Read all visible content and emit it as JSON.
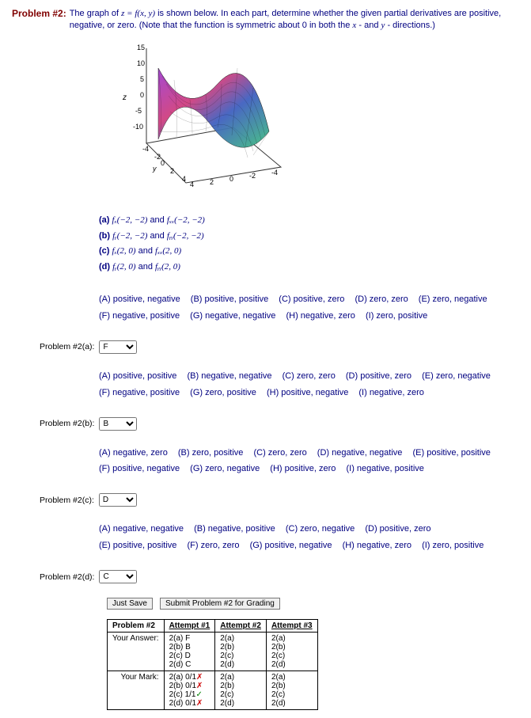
{
  "problem": {
    "title": "Problem #2:",
    "desc_part1": "The graph of ",
    "desc_formula": "z = f(x, y)",
    "desc_part2": " is shown below. In each part, determine whether the given partial derivatives are positive, negative, or zero. (Note that the function is symmetric about 0 in both the ",
    "desc_xvar": "x",
    "desc_and": "- and ",
    "desc_yvar": "y",
    "desc_end": "- directions.)"
  },
  "graph": {
    "z_ticks": [
      "15",
      "10",
      "5",
      "0",
      "-5",
      "-10"
    ],
    "y_ticks": [
      "-4",
      "-2",
      "0",
      "2",
      "4"
    ],
    "x_ticks": [
      "4",
      "2",
      "0",
      "-2",
      "-4"
    ],
    "z_label": "z",
    "y_label": "y"
  },
  "subparts": {
    "a": {
      "label": "(a)",
      "f1": "fₓ(−2, −2)",
      "and": " and ",
      "f2": "fₓₓ(−2, −2)"
    },
    "b": {
      "label": "(b)",
      "f1": "fᵧ(−2, −2)",
      "and": " and ",
      "f2": "fᵧᵧ(−2, −2)"
    },
    "c": {
      "label": "(c)",
      "f1": "fₓ(2, 0)",
      "and": " and ",
      "f2": "fₓₓ(2, 0)"
    },
    "d": {
      "label": "(d)",
      "f1": "fᵧ(2, 0)",
      "and": " and ",
      "f2": "fᵧᵧ(2, 0)"
    }
  },
  "options_a": {
    "A": "(A) positive, negative",
    "B": "(B) positive, positive",
    "C": "(C) positive, zero",
    "D": "(D) zero, zero",
    "E": "(E) zero, negative",
    "F": "(F) negative, positive",
    "G": "(G) negative, negative",
    "H": "(H) negative, zero",
    "I": "(I) zero, positive"
  },
  "options_b": {
    "A": "(A) positive, positive",
    "B": "(B) negative, negative",
    "C": "(C) zero, zero",
    "D": "(D) positive, zero",
    "E": "(E) zero, negative",
    "F": "(F) negative, positive",
    "G": "(G) zero, positive",
    "H": "(H) positive, negative",
    "I": "(I) negative, zero"
  },
  "options_c": {
    "A": "(A) negative, zero",
    "B": "(B) zero, positive",
    "C": "(C) zero, zero",
    "D": "(D) negative, negative",
    "E": "(E) positive, positive",
    "F": "(F) positive, negative",
    "G": "(G) zero, negative",
    "H": "(H) positive, zero",
    "I": "(I) negative, positive"
  },
  "options_d": {
    "A": "(A) negative, negative",
    "B": "(B) negative, positive",
    "C": "(C) zero, negative",
    "D": "(D) positive, zero",
    "E": "(E) positive, positive",
    "F": "(F) zero, zero",
    "G": "(G) positive, negative",
    "H": "(H) negative, zero",
    "I": "(I) zero, positive"
  },
  "labels": {
    "p2a": "Problem #2(a):",
    "p2b": "Problem #2(b):",
    "p2c": "Problem #2(c):",
    "p2d": "Problem #2(d):"
  },
  "selected": {
    "a": "F",
    "b": "B",
    "c": "D",
    "d": "C"
  },
  "buttons": {
    "save": "Just Save",
    "submit": "Submit Problem #2 for Grading"
  },
  "table": {
    "header": [
      "Problem #2",
      "Attempt #1",
      "Attempt #2",
      "Attempt #3"
    ],
    "row_answer_label": "Your Answer:",
    "row_mark_label": "Your Mark:",
    "answer1": [
      "2(a) F",
      "2(b) B",
      "2(c) D",
      "2(d) C"
    ],
    "answer2": [
      "2(a)",
      "2(b)",
      "2(c)",
      "2(d)"
    ],
    "answer3": [
      "2(a)",
      "2(b)",
      "2(c)",
      "2(d)"
    ],
    "mark1": [
      {
        "t": "2(a) 0/1",
        "m": "✗",
        "c": "cross"
      },
      {
        "t": "2(b) 0/1",
        "m": "✗",
        "c": "cross"
      },
      {
        "t": "2(c) 1/1",
        "m": "✓",
        "c": "chk"
      },
      {
        "t": "2(d) 0/1",
        "m": "✗",
        "c": "cross"
      }
    ],
    "mark2": [
      "2(a)",
      "2(b)",
      "2(c)",
      "2(d)"
    ],
    "mark3": [
      "2(a)",
      "2(b)",
      "2(c)",
      "2(d)"
    ]
  }
}
